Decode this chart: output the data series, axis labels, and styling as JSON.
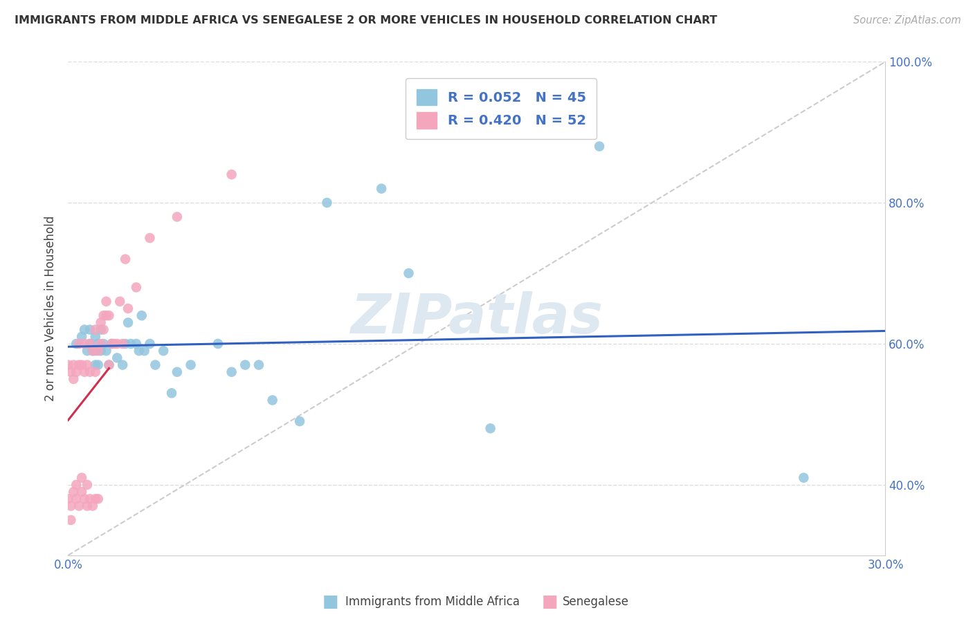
{
  "title": "IMMIGRANTS FROM MIDDLE AFRICA VS SENEGALESE 2 OR MORE VEHICLES IN HOUSEHOLD CORRELATION CHART",
  "source": "Source: ZipAtlas.com",
  "ylabel": "2 or more Vehicles in Household",
  "xlim": [
    0.0,
    0.3
  ],
  "ylim": [
    0.3,
    1.0
  ],
  "blue_R": 0.052,
  "blue_N": 45,
  "pink_R": 0.42,
  "pink_N": 52,
  "blue_color": "#92c5de",
  "pink_color": "#f4a6bd",
  "trendline_blue_color": "#3060c0",
  "trendline_pink_color": "#d03050",
  "ref_line_color": "#cccccc",
  "watermark": "ZIPatlas",
  "watermark_color": "#dde8f0",
  "legend_label_blue": "Immigrants from Middle Africa",
  "legend_label_pink": "Senegalese",
  "blue_x": [
    0.003,
    0.005,
    0.006,
    0.007,
    0.008,
    0.008,
    0.009,
    0.01,
    0.01,
    0.01,
    0.011,
    0.011,
    0.012,
    0.012,
    0.013,
    0.014,
    0.015,
    0.016,
    0.018,
    0.02,
    0.021,
    0.022,
    0.023,
    0.025,
    0.026,
    0.027,
    0.028,
    0.03,
    0.032,
    0.035,
    0.038,
    0.04,
    0.045,
    0.055,
    0.06,
    0.065,
    0.07,
    0.075,
    0.085,
    0.095,
    0.115,
    0.125,
    0.155,
    0.195,
    0.27
  ],
  "blue_y": [
    0.6,
    0.61,
    0.62,
    0.59,
    0.62,
    0.6,
    0.59,
    0.57,
    0.59,
    0.61,
    0.57,
    0.6,
    0.59,
    0.62,
    0.6,
    0.59,
    0.57,
    0.6,
    0.58,
    0.57,
    0.6,
    0.63,
    0.6,
    0.6,
    0.59,
    0.64,
    0.59,
    0.6,
    0.57,
    0.59,
    0.53,
    0.56,
    0.57,
    0.6,
    0.56,
    0.57,
    0.57,
    0.52,
    0.49,
    0.8,
    0.82,
    0.7,
    0.48,
    0.88,
    0.41
  ],
  "pink_x": [
    0.0,
    0.0,
    0.001,
    0.001,
    0.001,
    0.002,
    0.002,
    0.002,
    0.003,
    0.003,
    0.003,
    0.004,
    0.004,
    0.004,
    0.005,
    0.005,
    0.005,
    0.006,
    0.006,
    0.006,
    0.007,
    0.007,
    0.007,
    0.008,
    0.008,
    0.008,
    0.009,
    0.009,
    0.01,
    0.01,
    0.01,
    0.011,
    0.011,
    0.012,
    0.012,
    0.013,
    0.013,
    0.014,
    0.014,
    0.015,
    0.015,
    0.016,
    0.017,
    0.018,
    0.019,
    0.02,
    0.021,
    0.022,
    0.025,
    0.03,
    0.04,
    0.06
  ],
  "pink_y": [
    0.57,
    0.38,
    0.56,
    0.37,
    0.35,
    0.57,
    0.39,
    0.55,
    0.38,
    0.56,
    0.4,
    0.37,
    0.57,
    0.6,
    0.39,
    0.57,
    0.41,
    0.38,
    0.56,
    0.6,
    0.37,
    0.57,
    0.4,
    0.38,
    0.56,
    0.6,
    0.37,
    0.59,
    0.38,
    0.56,
    0.62,
    0.38,
    0.59,
    0.6,
    0.63,
    0.62,
    0.64,
    0.64,
    0.66,
    0.64,
    0.57,
    0.6,
    0.6,
    0.6,
    0.66,
    0.6,
    0.72,
    0.65,
    0.68,
    0.75,
    0.78,
    0.84
  ]
}
